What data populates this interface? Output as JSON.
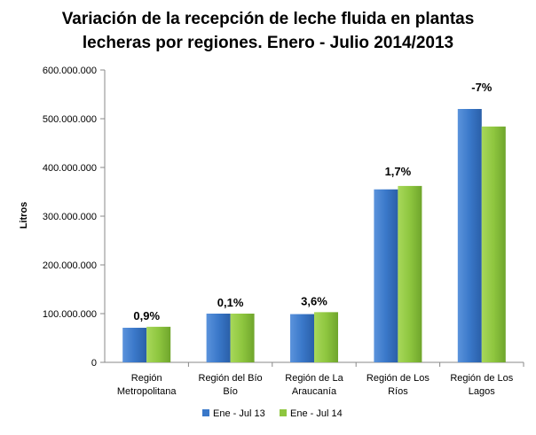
{
  "chart_data": {
    "type": "bar",
    "title_line1": "Variación de la recepción de leche fluida en plantas",
    "title_line2": "lecheras por regiones. Enero - Julio 2014/2013",
    "ylabel": "Litros",
    "xlabel": "",
    "ylim": [
      0,
      600000000
    ],
    "yticks": [
      "0",
      "100.000.000",
      "200.000.000",
      "300.000.000",
      "400.000.000",
      "500.000.000",
      "600.000.000"
    ],
    "grid": false,
    "legend_position": "bottom",
    "categories": [
      [
        "Región",
        "Metropolitana"
      ],
      [
        "Región del Bío",
        "Bío"
      ],
      [
        "Región de La",
        "Araucanía"
      ],
      [
        "Región de Los",
        "Ríos"
      ],
      [
        "Región de Los",
        "Lagos"
      ]
    ],
    "series": [
      {
        "name": "Ene - Jul 13",
        "color": "#3a78c9",
        "values": [
          71000000,
          100000000,
          99000000,
          355000000,
          520000000
        ]
      },
      {
        "name": "Ene - Jul 14",
        "color": "#8ec63f",
        "values": [
          73000000,
          100000000,
          103000000,
          362000000,
          484000000
        ]
      }
    ],
    "annotations": [
      "0,9%",
      "0,1%",
      "3,6%",
      "1,7%",
      "-7%"
    ]
  }
}
